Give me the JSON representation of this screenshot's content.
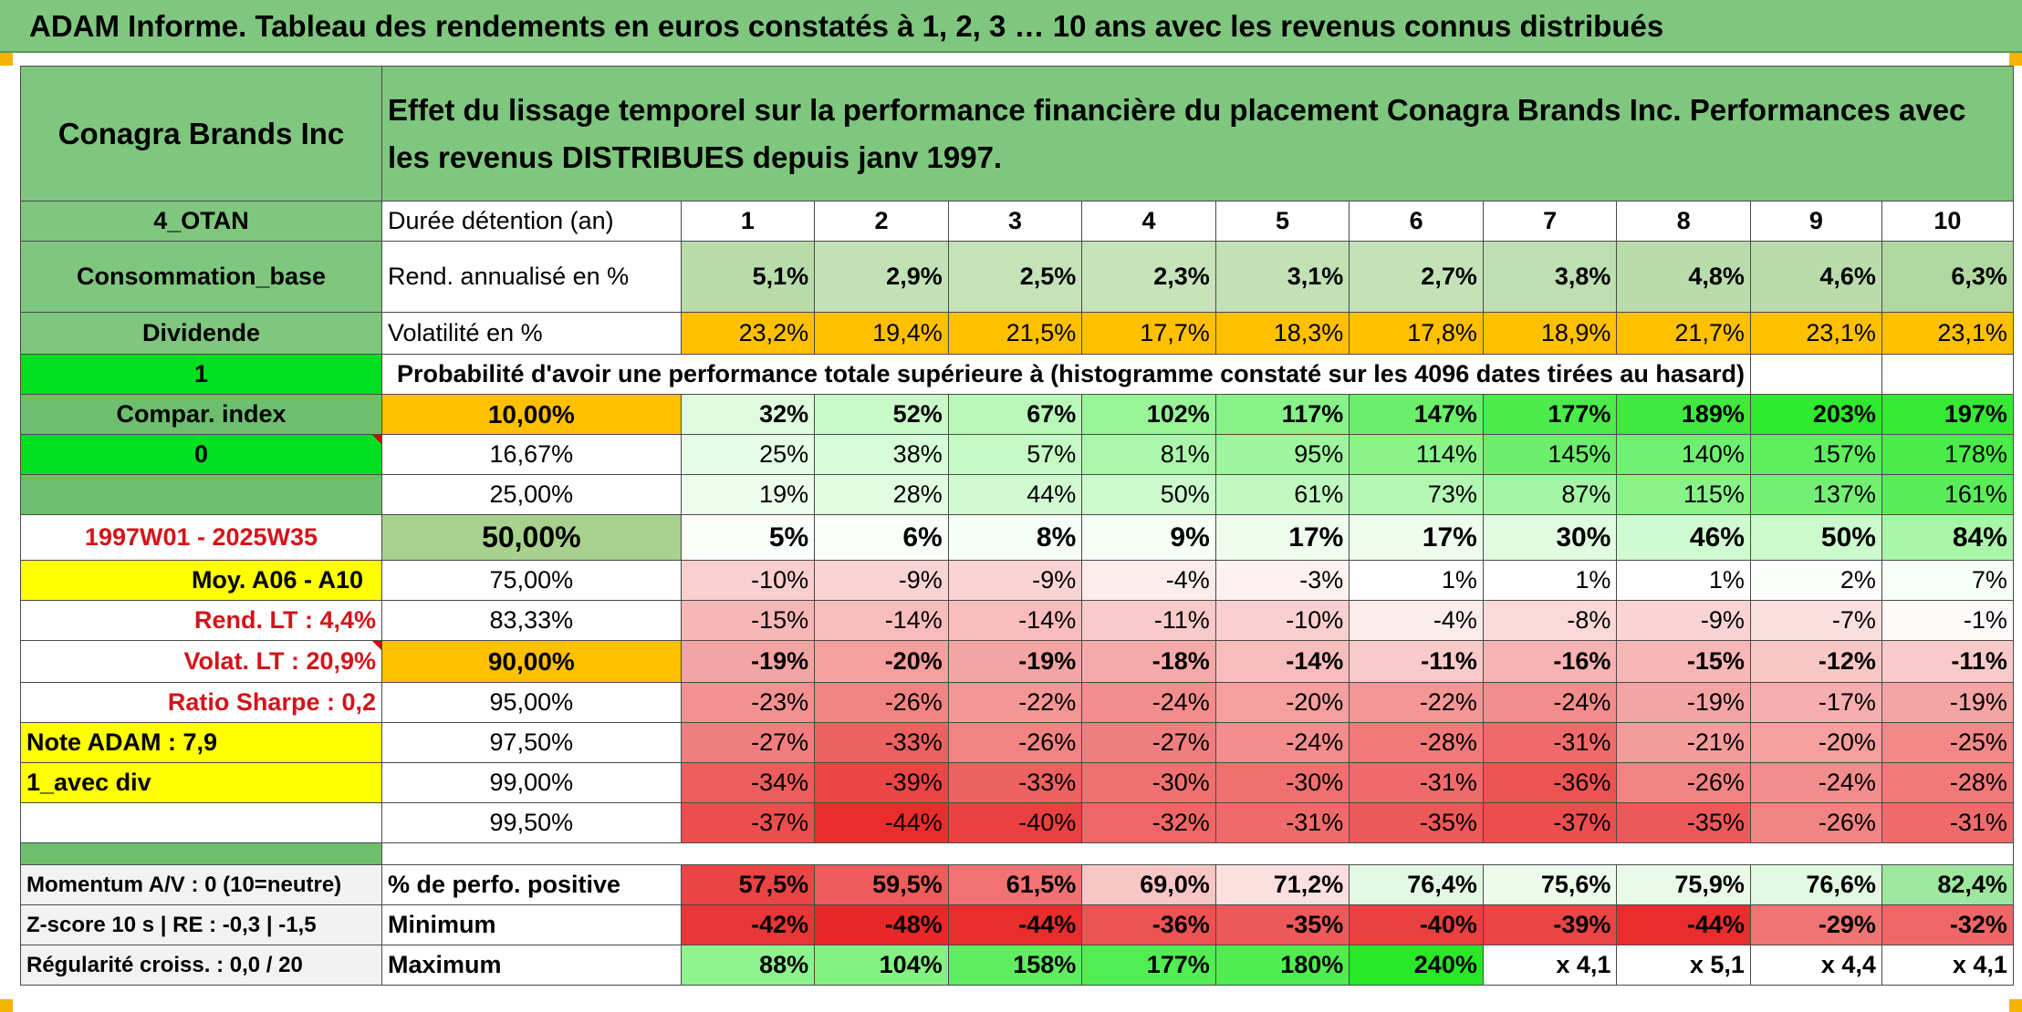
{
  "title": "ADAM Informe. Tableau des rendements en euros constatés à 1, 2, 3 … 10 ans avec les revenus connus distribués",
  "company": "Conagra Brands Inc",
  "description": "Effet du lissage temporel sur la performance financière du placement Conagra Brands Inc. Performances avec les revenus DISTRIBUES depuis janv 1997.",
  "left_labels": {
    "code": "4_OTAN",
    "sector": "Consommation_base",
    "type": "Dividende",
    "flag1": "1",
    "compar": "Compar. index",
    "flag0": "0",
    "period": "1997W01 - 2025W35",
    "moy": "Moy. A06 - A10",
    "rend_lt": "Rend. LT :   4,4%",
    "volat_lt": "Volat. LT :   20,9%",
    "sharpe": "Ratio Sharpe :   0,2",
    "note": "Note ADAM : 7,9",
    "avec_div": "1_avec div",
    "momentum": "Momentum A/V : 0 (10=neutre)",
    "zscore": "Z-score 10 s | RE : -0,3 | -1,5",
    "regularite": "Régularité croiss. : 0,0 / 20"
  },
  "header": {
    "duration_label": "Durée détention (an)",
    "years": [
      "1",
      "2",
      "3",
      "4",
      "5",
      "6",
      "7",
      "8",
      "9",
      "10"
    ]
  },
  "rend": {
    "label": "Rend. annualisé en %",
    "values": [
      "5,1%",
      "2,9%",
      "2,5%",
      "2,3%",
      "3,1%",
      "2,7%",
      "3,8%",
      "4,8%",
      "4,6%",
      "6,3%"
    ]
  },
  "volat": {
    "label": "Volatilité en %",
    "values": [
      "23,2%",
      "19,4%",
      "21,5%",
      "17,7%",
      "18,3%",
      "17,8%",
      "18,9%",
      "21,7%",
      "23,1%",
      "23,1%"
    ]
  },
  "proba_label": "Probabilité d'avoir une performance totale supérieure à (histogramme constaté sur les 4096 dates tirées au hasard)",
  "quantiles": [
    {
      "label": "10,00%",
      "values": [
        "32%",
        "52%",
        "67%",
        "102%",
        "117%",
        "147%",
        "177%",
        "189%",
        "203%",
        "197%"
      ]
    },
    {
      "label": "16,67%",
      "values": [
        "25%",
        "38%",
        "57%",
        "81%",
        "95%",
        "114%",
        "145%",
        "140%",
        "157%",
        "178%"
      ]
    },
    {
      "label": "25,00%",
      "values": [
        "19%",
        "28%",
        "44%",
        "50%",
        "61%",
        "73%",
        "87%",
        "115%",
        "137%",
        "161%"
      ]
    },
    {
      "label": "50,00%",
      "values": [
        "5%",
        "6%",
        "8%",
        "9%",
        "17%",
        "17%",
        "30%",
        "46%",
        "50%",
        "84%"
      ]
    },
    {
      "label": "75,00%",
      "values": [
        "-10%",
        "-9%",
        "-9%",
        "-4%",
        "-3%",
        "1%",
        "1%",
        "1%",
        "2%",
        "7%"
      ]
    },
    {
      "label": "83,33%",
      "values": [
        "-15%",
        "-14%",
        "-14%",
        "-11%",
        "-10%",
        "-4%",
        "-8%",
        "-9%",
        "-7%",
        "-1%"
      ]
    },
    {
      "label": "90,00%",
      "values": [
        "-19%",
        "-20%",
        "-19%",
        "-18%",
        "-14%",
        "-11%",
        "-16%",
        "-15%",
        "-12%",
        "-11%"
      ]
    },
    {
      "label": "95,00%",
      "values": [
        "-23%",
        "-26%",
        "-22%",
        "-24%",
        "-20%",
        "-22%",
        "-24%",
        "-19%",
        "-17%",
        "-19%"
      ]
    },
    {
      "label": "97,50%",
      "values": [
        "-27%",
        "-33%",
        "-26%",
        "-27%",
        "-24%",
        "-28%",
        "-31%",
        "-21%",
        "-20%",
        "-25%"
      ]
    },
    {
      "label": "99,00%",
      "values": [
        "-34%",
        "-39%",
        "-33%",
        "-30%",
        "-30%",
        "-31%",
        "-36%",
        "-26%",
        "-24%",
        "-28%"
      ]
    },
    {
      "label": "99,50%",
      "values": [
        "-37%",
        "-44%",
        "-40%",
        "-32%",
        "-31%",
        "-35%",
        "-37%",
        "-35%",
        "-26%",
        "-31%"
      ]
    }
  ],
  "positive": {
    "label": "% de perfo. positive",
    "values": [
      "57,5%",
      "59,5%",
      "61,5%",
      "69,0%",
      "71,2%",
      "76,4%",
      "75,6%",
      "75,9%",
      "76,6%",
      "82,4%"
    ]
  },
  "minimum": {
    "label": "Minimum",
    "values": [
      "-42%",
      "-48%",
      "-44%",
      "-36%",
      "-35%",
      "-40%",
      "-39%",
      "-44%",
      "-29%",
      "-32%"
    ]
  },
  "maximum": {
    "label": "Maximum",
    "values": [
      "88%",
      "104%",
      "158%",
      "177%",
      "180%",
      "240%",
      "x 4,1",
      "x 5,1",
      "x 4,4",
      "x 4,1"
    ]
  },
  "colors": {
    "title_bar": "#7fc67f",
    "label_green": "#7fc67f",
    "bright_green": "#00e020",
    "orange": "#ffc000",
    "yellow": "#ffff00",
    "label_red": "#d4141a"
  }
}
